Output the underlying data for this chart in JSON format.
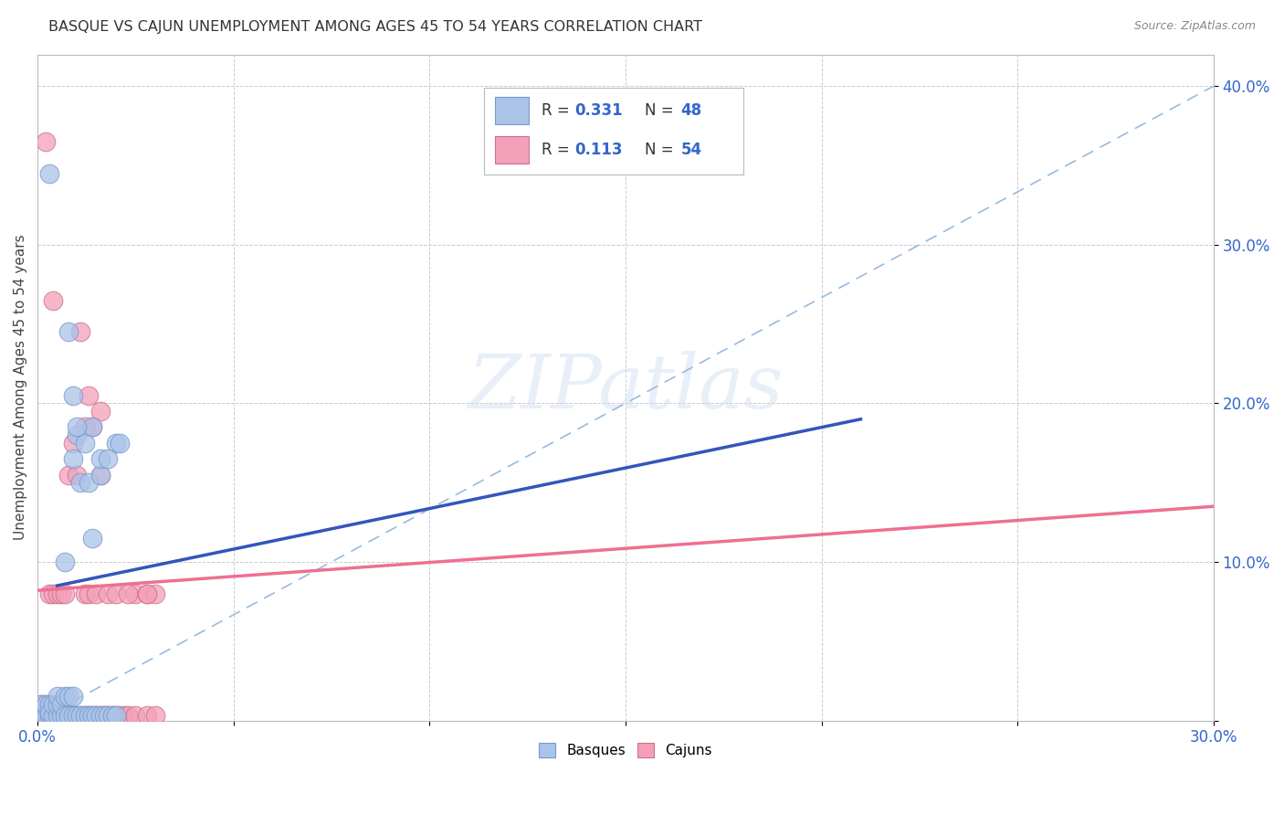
{
  "title": "BASQUE VS CAJUN UNEMPLOYMENT AMONG AGES 45 TO 54 YEARS CORRELATION CHART",
  "source": "Source: ZipAtlas.com",
  "ylabel": "Unemployment Among Ages 45 to 54 years",
  "xlim": [
    0.0,
    0.3
  ],
  "ylim": [
    0.0,
    0.42
  ],
  "xticks": [
    0.0,
    0.05,
    0.1,
    0.15,
    0.2,
    0.25,
    0.3
  ],
  "yticks": [
    0.0,
    0.1,
    0.2,
    0.3,
    0.4
  ],
  "xtick_labels": [
    "0.0%",
    "",
    "",
    "",
    "",
    "",
    "30.0%"
  ],
  "ytick_labels": [
    "",
    "10.0%",
    "20.0%",
    "30.0%",
    "40.0%"
  ],
  "background_color": "#ffffff",
  "grid_color": "#cccccc",
  "basque_color": "#aac4e8",
  "cajun_color": "#f4a0b8",
  "basque_edge": "#7799cc",
  "cajun_edge": "#cc7090",
  "basque_label": "Basques",
  "cajun_label": "Cajuns",
  "basque_R": "0.331",
  "basque_N": "48",
  "cajun_R": "0.113",
  "cajun_N": "54",
  "legend_color": "#3366cc",
  "basque_line_color": "#3355bb",
  "cajun_line_color": "#ee7090",
  "ref_line_color": "#99bbdd",
  "watermark": "ZIPatlas",
  "basque_scatter": [
    [
      0.001,
      0.003
    ],
    [
      0.001,
      0.01
    ],
    [
      0.002,
      0.003
    ],
    [
      0.002,
      0.01
    ],
    [
      0.003,
      0.003
    ],
    [
      0.003,
      0.01
    ],
    [
      0.003,
      0.005
    ],
    [
      0.004,
      0.003
    ],
    [
      0.004,
      0.01
    ],
    [
      0.005,
      0.003
    ],
    [
      0.005,
      0.01
    ],
    [
      0.005,
      0.015
    ],
    [
      0.006,
      0.003
    ],
    [
      0.006,
      0.01
    ],
    [
      0.007,
      0.003
    ],
    [
      0.007,
      0.015
    ],
    [
      0.007,
      0.1
    ],
    [
      0.008,
      0.003
    ],
    [
      0.008,
      0.015
    ],
    [
      0.009,
      0.003
    ],
    [
      0.009,
      0.015
    ],
    [
      0.009,
      0.165
    ],
    [
      0.01,
      0.003
    ],
    [
      0.01,
      0.18
    ],
    [
      0.011,
      0.003
    ],
    [
      0.011,
      0.15
    ],
    [
      0.012,
      0.003
    ],
    [
      0.012,
      0.175
    ],
    [
      0.013,
      0.003
    ],
    [
      0.013,
      0.15
    ],
    [
      0.014,
      0.003
    ],
    [
      0.014,
      0.185
    ],
    [
      0.015,
      0.003
    ],
    [
      0.016,
      0.003
    ],
    [
      0.016,
      0.155
    ],
    [
      0.017,
      0.003
    ],
    [
      0.018,
      0.003
    ],
    [
      0.019,
      0.003
    ],
    [
      0.02,
      0.003
    ],
    [
      0.02,
      0.175
    ],
    [
      0.003,
      0.345
    ],
    [
      0.008,
      0.245
    ],
    [
      0.009,
      0.205
    ],
    [
      0.01,
      0.185
    ],
    [
      0.016,
      0.165
    ],
    [
      0.018,
      0.165
    ],
    [
      0.021,
      0.175
    ],
    [
      0.014,
      0.115
    ]
  ],
  "cajun_scatter": [
    [
      0.001,
      0.003
    ],
    [
      0.001,
      0.01
    ],
    [
      0.002,
      0.003
    ],
    [
      0.002,
      0.01
    ],
    [
      0.003,
      0.003
    ],
    [
      0.003,
      0.08
    ],
    [
      0.004,
      0.003
    ],
    [
      0.004,
      0.08
    ],
    [
      0.005,
      0.003
    ],
    [
      0.005,
      0.08
    ],
    [
      0.006,
      0.003
    ],
    [
      0.006,
      0.08
    ],
    [
      0.007,
      0.003
    ],
    [
      0.007,
      0.08
    ],
    [
      0.008,
      0.003
    ],
    [
      0.008,
      0.155
    ],
    [
      0.009,
      0.003
    ],
    [
      0.009,
      0.175
    ],
    [
      0.01,
      0.003
    ],
    [
      0.01,
      0.155
    ],
    [
      0.011,
      0.003
    ],
    [
      0.012,
      0.003
    ],
    [
      0.012,
      0.08
    ],
    [
      0.013,
      0.003
    ],
    [
      0.013,
      0.08
    ],
    [
      0.014,
      0.003
    ],
    [
      0.014,
      0.185
    ],
    [
      0.015,
      0.003
    ],
    [
      0.015,
      0.08
    ],
    [
      0.016,
      0.003
    ],
    [
      0.016,
      0.195
    ],
    [
      0.017,
      0.003
    ],
    [
      0.018,
      0.003
    ],
    [
      0.018,
      0.08
    ],
    [
      0.019,
      0.003
    ],
    [
      0.02,
      0.003
    ],
    [
      0.02,
      0.08
    ],
    [
      0.021,
      0.003
    ],
    [
      0.022,
      0.003
    ],
    [
      0.023,
      0.003
    ],
    [
      0.025,
      0.003
    ],
    [
      0.025,
      0.08
    ],
    [
      0.028,
      0.003
    ],
    [
      0.028,
      0.08
    ],
    [
      0.03,
      0.003
    ],
    [
      0.03,
      0.08
    ],
    [
      0.002,
      0.365
    ],
    [
      0.004,
      0.265
    ],
    [
      0.011,
      0.245
    ],
    [
      0.013,
      0.205
    ],
    [
      0.016,
      0.155
    ],
    [
      0.012,
      0.185
    ],
    [
      0.023,
      0.08
    ],
    [
      0.028,
      0.08
    ]
  ],
  "basque_line": [
    [
      0.005,
      0.085
    ],
    [
      0.21,
      0.19
    ]
  ],
  "cajun_line": [
    [
      0.0,
      0.082
    ],
    [
      0.3,
      0.135
    ]
  ],
  "ref_line": [
    [
      0.0,
      0.0
    ],
    [
      0.3,
      0.4
    ]
  ]
}
